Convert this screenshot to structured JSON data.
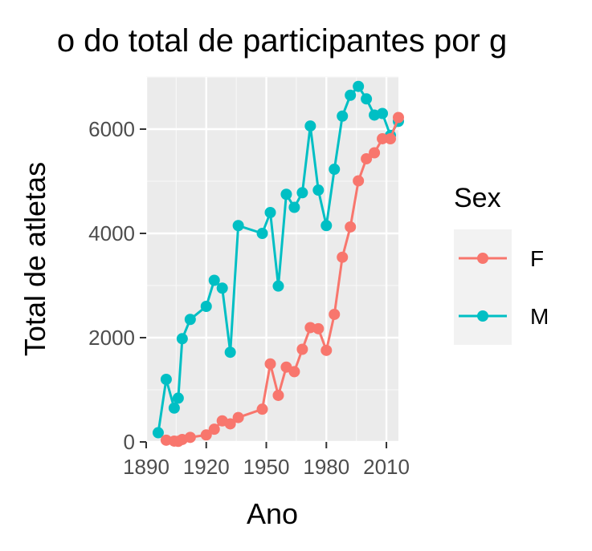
{
  "chart_data": {
    "type": "line",
    "title": "o do total de participantes por g",
    "xlabel": "Ano",
    "ylabel": "Total de atletas",
    "xlim": [
      1890,
      2016
    ],
    "ylim": [
      0,
      7000
    ],
    "xticks": [
      1890,
      1920,
      1950,
      1980,
      2010
    ],
    "yticks": [
      0,
      2000,
      4000,
      6000
    ],
    "xtick_labels": [
      "1890",
      "1920",
      "1950",
      "1980",
      "2010"
    ],
    "ytick_labels": [
      "0",
      "2000",
      "4000",
      "6000"
    ],
    "grid": true,
    "legend": {
      "title": "Sex",
      "position": "right"
    },
    "series": [
      {
        "name": "F",
        "color": "#F8766D",
        "x": [
          1900,
          1904,
          1906,
          1908,
          1912,
          1920,
          1924,
          1928,
          1932,
          1936,
          1948,
          1952,
          1956,
          1960,
          1964,
          1968,
          1972,
          1976,
          1980,
          1984,
          1988,
          1992,
          1996,
          2000,
          2004,
          2008,
          2012,
          2016
        ],
        "y": [
          33,
          16,
          11,
          47,
          87,
          134,
          244,
          404,
          347,
          468,
          628,
          1497,
          893,
          1435,
          1348,
          1777,
          2193,
          2172,
          1756,
          2447,
          3543,
          4124,
          5008,
          5431,
          5546,
          5816,
          5815,
          6223
        ]
      },
      {
        "name": "M",
        "color": "#00BFC4",
        "x": [
          1896,
          1900,
          1904,
          1906,
          1908,
          1912,
          1920,
          1924,
          1928,
          1932,
          1936,
          1948,
          1952,
          1956,
          1960,
          1964,
          1968,
          1972,
          1976,
          1980,
          1984,
          1988,
          1992,
          1996,
          2000,
          2004,
          2008,
          2012,
          2016
        ],
        "y": [
          176,
          1200,
          650,
          840,
          1980,
          2350,
          2600,
          3100,
          2950,
          1720,
          4150,
          4000,
          4400,
          2990,
          4750,
          4500,
          4780,
          6060,
          4830,
          4150,
          5230,
          6250,
          6650,
          6820,
          6580,
          6270,
          6300,
          5880,
          6150
        ]
      }
    ]
  }
}
